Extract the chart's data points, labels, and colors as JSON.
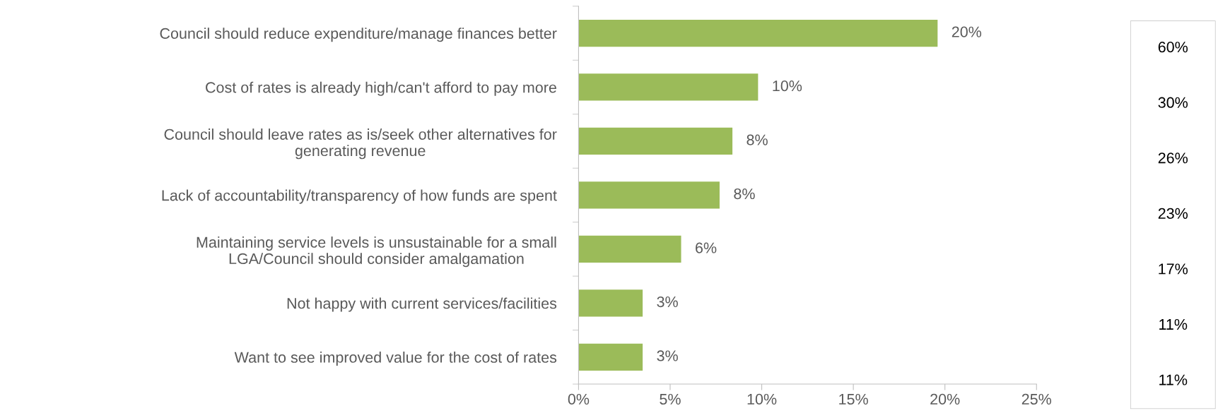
{
  "chart_data": [
    {
      "type": "bar",
      "orientation": "horizontal",
      "categories": [
        "Council should reduce expenditure/manage finances better",
        "Cost of rates is already high/can't afford to pay more",
        "Council should leave rates as is/seek other alternatives for\ngenerating revenue",
        "Lack of accountability/transparency of how funds are spent",
        "Maintaining service levels is unsustainable for a small\nLGA/Council should consider amalgamation",
        "Not happy with current services/facilities",
        "Want to see improved value for the cost of rates"
      ],
      "values": [
        19.6,
        9.8,
        8.4,
        7.7,
        5.6,
        3.5,
        3.5
      ],
      "value_labels": [
        "20%",
        "10%",
        "8%",
        "8%",
        "6%",
        "3%",
        "3%"
      ],
      "color": "#9bbb59",
      "xlim": [
        0,
        25
      ],
      "xticks": [
        {
          "value": 0,
          "label": "0%"
        },
        {
          "value": 5,
          "label": "5%"
        },
        {
          "value": 10,
          "label": "10%"
        },
        {
          "value": 15,
          "label": "15%"
        },
        {
          "value": 20,
          "label": "20%"
        },
        {
          "value": 25,
          "label": "25%"
        }
      ],
      "grid": false
    },
    {
      "type": "other",
      "annotations": [
        "60%",
        "30%",
        "26%",
        "23%",
        "17%",
        "11%",
        "11%"
      ]
    }
  ]
}
